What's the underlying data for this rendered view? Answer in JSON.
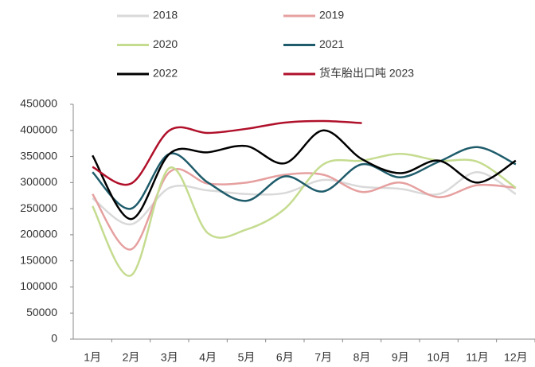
{
  "chart_data": {
    "type": "line",
    "categories": [
      "1月",
      "2月",
      "3月",
      "4月",
      "5月",
      "6月",
      "7月",
      "8月",
      "9月",
      "10月",
      "11月",
      "12月"
    ],
    "ylim": [
      0,
      450000
    ],
    "yticks": [
      0,
      50000,
      100000,
      150000,
      200000,
      250000,
      300000,
      350000,
      400000,
      450000
    ],
    "legend": "top",
    "series": [
      {
        "name": "2018",
        "color": "#d9d9d9",
        "values": [
          270000,
          220000,
          290000,
          285000,
          278000,
          280000,
          305000,
          292000,
          288000,
          278000,
          320000,
          278000
        ]
      },
      {
        "name": "2019",
        "color": "#e6a0a0",
        "values": [
          278000,
          172000,
          320000,
          298000,
          300000,
          315000,
          315000,
          282000,
          300000,
          272000,
          295000,
          290000
        ]
      },
      {
        "name": "2020",
        "color": "#c5dc90",
        "values": [
          255000,
          122000,
          328000,
          203000,
          210000,
          250000,
          335000,
          342000,
          355000,
          342000,
          340000,
          290000
        ]
      },
      {
        "name": "2021",
        "color": "#1f5c6b",
        "values": [
          320000,
          250000,
          355000,
          300000,
          265000,
          312000,
          283000,
          335000,
          310000,
          340000,
          368000,
          335000
        ]
      },
      {
        "name": "2022",
        "color": "#000000",
        "values": [
          352000,
          230000,
          355000,
          358000,
          370000,
          337000,
          400000,
          345000,
          318000,
          342000,
          300000,
          342000
        ]
      },
      {
        "name": "货车胎出口吨 2023",
        "color": "#b0102a",
        "values": [
          330000,
          298000,
          400000,
          395000,
          403000,
          415000,
          418000,
          414000,
          null,
          null,
          null,
          null
        ]
      }
    ]
  }
}
